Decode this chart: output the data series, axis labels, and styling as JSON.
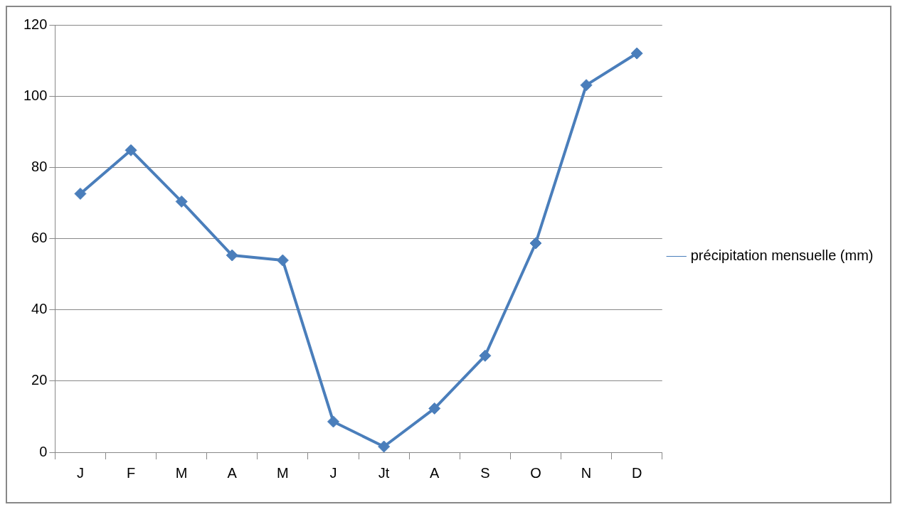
{
  "chart_data": {
    "type": "line",
    "categories": [
      "J",
      "F",
      "M",
      "A",
      "M",
      "J",
      "Jt",
      "A",
      "S",
      "O",
      "N",
      "D"
    ],
    "series": [
      {
        "name": "précipitation mensuelle (mm)",
        "color": "#4a7ebb",
        "values": [
          72.6,
          84.8,
          70.4,
          55.3,
          53.9,
          8.6,
          1.6,
          12.3,
          27.1,
          58.7,
          103.1,
          112.0
        ]
      }
    ],
    "ylim": [
      0,
      120
    ],
    "yticks": [
      0,
      20,
      40,
      60,
      80,
      100,
      120
    ],
    "grid": "y",
    "legend": "right",
    "marker": "diamond",
    "line_style": "solid"
  }
}
